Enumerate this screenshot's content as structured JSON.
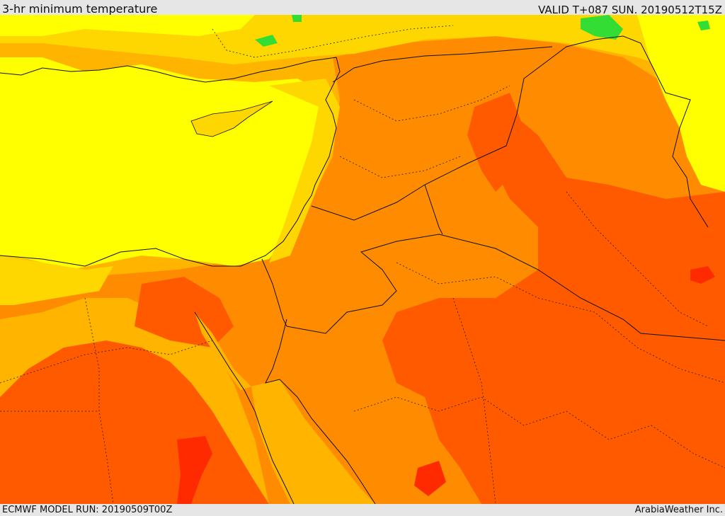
{
  "header": {
    "title": "3-hr minimum temperature",
    "valid": "VALID T+087 SUN. 20190512T15Z"
  },
  "footer": {
    "model_run": "ECMWF MODEL RUN: 20190509T00Z",
    "credit": "ArabiaWeather Inc."
  },
  "palette": {
    "sea_cool": "#ffff00",
    "band_yellow_orange": "#ffd700",
    "band_light_orange": "#ffb400",
    "band_orange": "#ff8c00",
    "band_dark_orange": "#ff5a00",
    "band_red": "#ff2a00",
    "band_green": "#33dd33",
    "border_line": "#111111"
  }
}
